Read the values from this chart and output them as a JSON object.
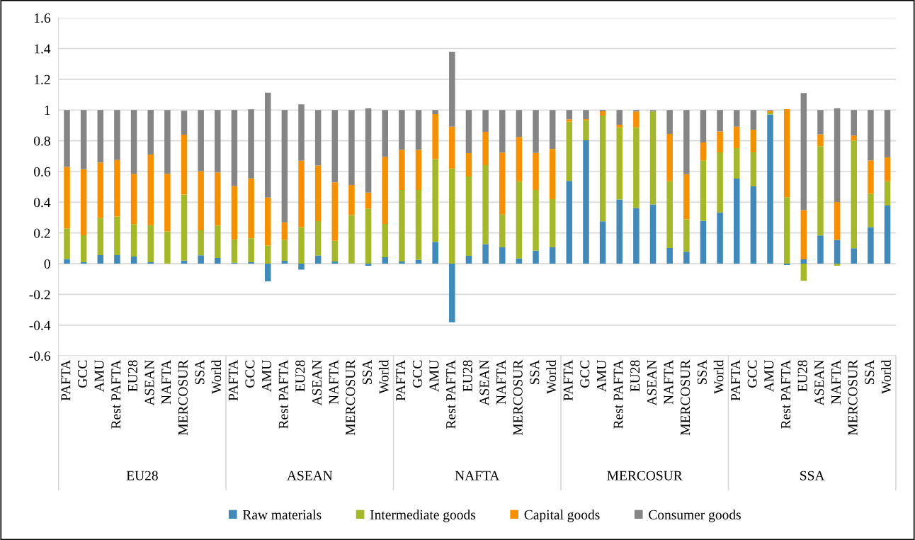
{
  "chart_data": {
    "type": "bar",
    "stacked": true,
    "categories": [
      "PAFTA",
      "GCC",
      "AMU",
      "Rest PAFTA",
      "EU28",
      "ASEAN",
      "NAFTA",
      "MERCOSUR",
      "SSA",
      "World",
      "PAFTA",
      "GCC",
      "AMU",
      "Rest PAFTA",
      "EU28",
      "ASEAN",
      "NAFTA",
      "MERCOSUR",
      "SSA",
      "World",
      "PAFTA",
      "GCC",
      "AMU",
      "Rest PAFTA",
      "EU28",
      "ASEAN",
      "NAFTA",
      "MERCOSUR",
      "SSA",
      "World",
      "PAFTA",
      "GCC",
      "AMU",
      "Rest PAFTA",
      "EU28",
      "ASEAN",
      "NAFTA",
      "MERCOSUR",
      "SSA",
      "World",
      "PAFTA",
      "GCC",
      "AMU",
      "Rest PAFTA",
      "EU28",
      "ASEAN",
      "NAFTA",
      "MERCOSUR",
      "SSA",
      "World"
    ],
    "annotations": [
      "EU28",
      "ASEAN",
      "NAFTA",
      "MERCOSUR",
      "SSA"
    ],
    "series": [
      {
        "name": "Raw materials",
        "color": "#4189b8",
        "values": [
          0.03,
          0.01,
          0.056,
          0.056,
          0.046,
          0.01,
          0,
          0.02,
          0.054,
          0.037,
          0.006,
          0.01,
          -0.115,
          0.019,
          -0.039,
          0.053,
          0.014,
          0.003,
          -0.014,
          0.042,
          0.014,
          0.025,
          0.142,
          -0.381,
          0.051,
          0.127,
          0.108,
          0.034,
          0.084,
          0.108,
          0.539,
          0.803,
          0.276,
          0.418,
          0.362,
          0.385,
          0.102,
          0.077,
          0.279,
          0.334,
          0.554,
          0.503,
          0.971,
          -0.009,
          0.028,
          0.184,
          0.155,
          0.101,
          0.238,
          0.378
        ]
      },
      {
        "name": "Intermediate goods",
        "color": "#a5b829",
        "values": [
          0.2,
          0.175,
          0.241,
          0.251,
          0.211,
          0.24,
          0.21,
          0.43,
          0.163,
          0.211,
          0.152,
          0.155,
          0.118,
          0.136,
          0.238,
          0.224,
          0.135,
          0.313,
          0.359,
          0.217,
          0.466,
          0.455,
          0.539,
          0.619,
          0.517,
          0.514,
          0.212,
          0.502,
          0.396,
          0.312,
          0.385,
          0.13,
          0.688,
          0.469,
          0.525,
          0.606,
          0.434,
          0.212,
          0.391,
          0.39,
          0.198,
          0.221,
          0.012,
          0.433,
          -0.111,
          0.581,
          -0.014,
          0.699,
          0.217,
          0.158
        ]
      },
      {
        "name": "Capital goods",
        "color": "#f59100",
        "values": [
          0.4,
          0.43,
          0.362,
          0.368,
          0.328,
          0.46,
          0.375,
          0.39,
          0.385,
          0.346,
          0.347,
          0.39,
          0.312,
          0.114,
          0.432,
          0.362,
          0.38,
          0.196,
          0.104,
          0.436,
          0.261,
          0.26,
          0.293,
          0.273,
          0.152,
          0.217,
          0.403,
          0.289,
          0.241,
          0.326,
          0.016,
          0.008,
          0.028,
          0.017,
          0.104,
          null,
          0.308,
          0.293,
          0.119,
          0.137,
          0.14,
          0.148,
          0.011,
          0.573,
          0.32,
          0.077,
          0.247,
          0.034,
          0.218,
          0.156
        ]
      },
      {
        "name": "Consumer goods",
        "color": "#858585",
        "values": [
          0.37,
          0.385,
          0.341,
          0.325,
          0.415,
          0.29,
          0.415,
          0.155,
          0.398,
          0.406,
          0.495,
          0.45,
          0.683,
          0.731,
          0.367,
          0.361,
          0.471,
          0.488,
          0.549,
          0.305,
          0.259,
          0.26,
          0.026,
          0.487,
          0.28,
          0.142,
          0.277,
          0.175,
          0.279,
          0.254,
          0.06,
          0.059,
          0.008,
          0.096,
          0.009,
          0.008,
          0.156,
          0.418,
          0.211,
          0.139,
          0.108,
          0.128,
          0.006,
          0,
          0.763,
          0.158,
          0.609,
          0.166,
          0.327,
          0.308
        ]
      }
    ],
    "ylim": [
      -0.6,
      1.6
    ],
    "yticks": [
      -0.6,
      -0.4,
      -0.2,
      0,
      0.2,
      0.4,
      0.6,
      0.8,
      1,
      1.2,
      1.4,
      1.6
    ],
    "grid": "y",
    "legend": "bottom"
  }
}
